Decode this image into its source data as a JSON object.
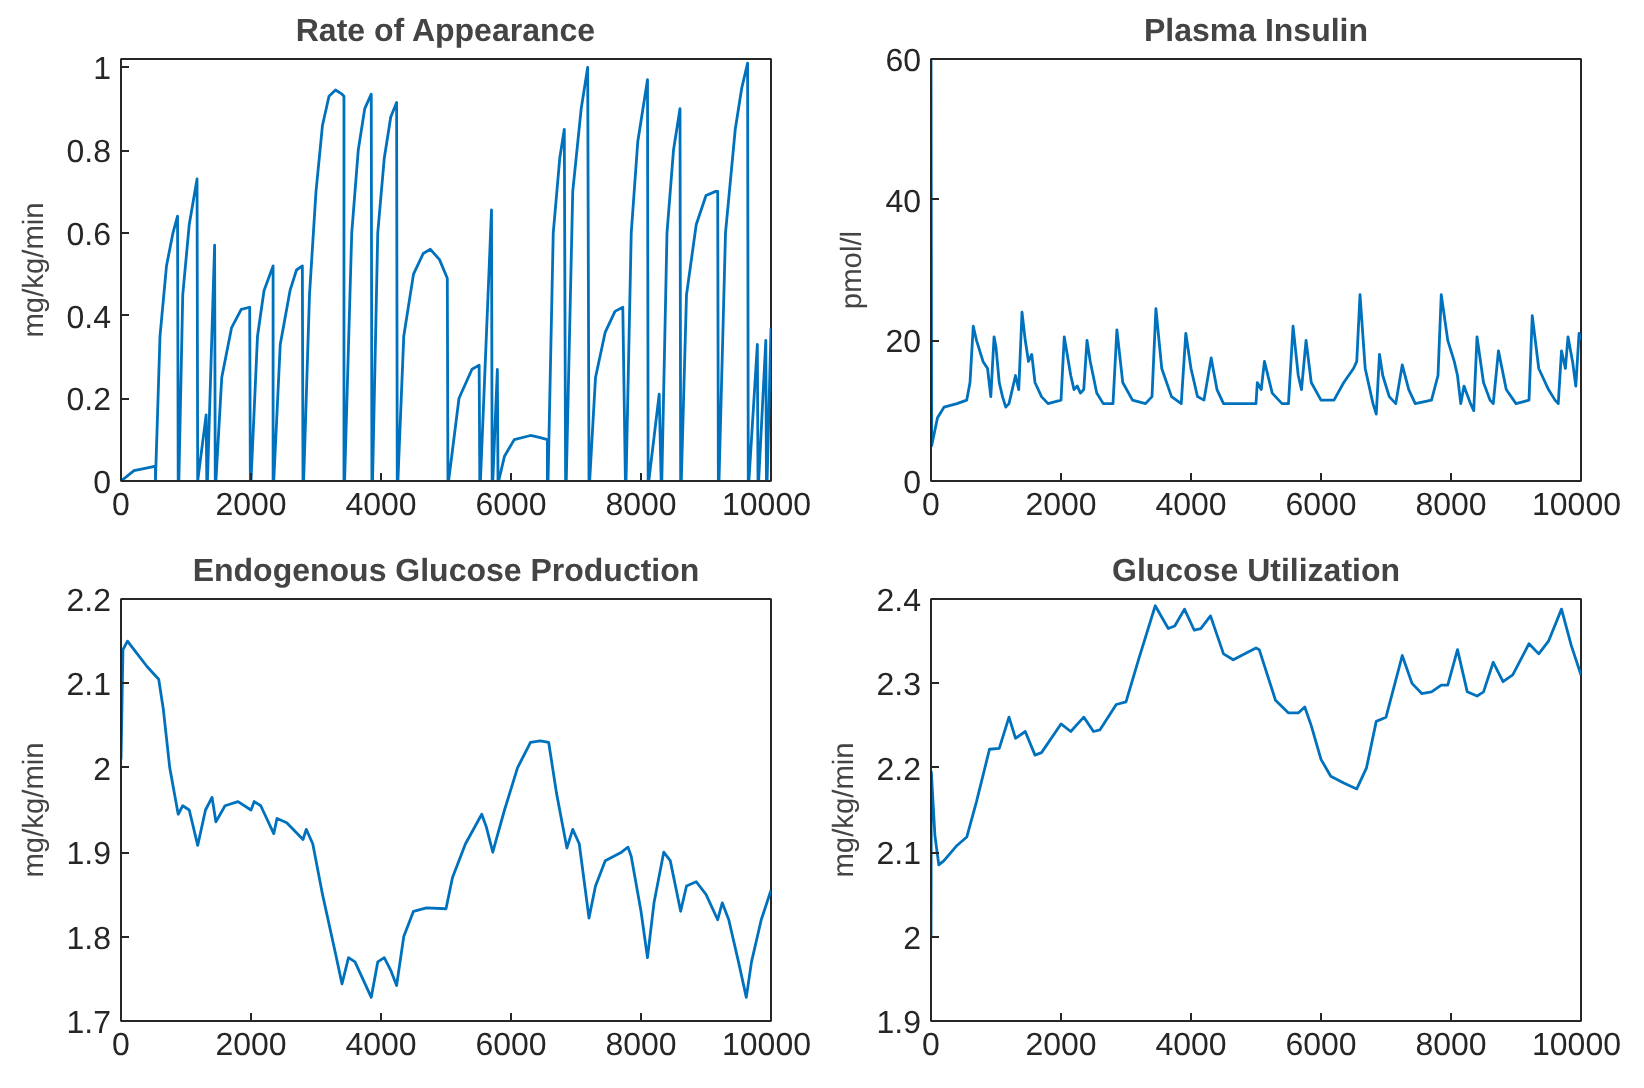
{
  "chart_data": [
    {
      "type": "line",
      "title": "Rate of Appearance",
      "ylabel": "mg/kg/min",
      "xlim": [
        0,
        10000
      ],
      "ylim": [
        0,
        1.02
      ],
      "xticks": [
        0,
        2000,
        4000,
        6000,
        8000,
        10000
      ],
      "yticks": [
        0,
        0.2,
        0.4,
        0.6,
        0.8,
        1
      ],
      "grid": false,
      "marker": "none",
      "line_style": "solid",
      "series": [
        {
          "color": "#0072bd",
          "x": [
            0,
            200,
            500,
            530,
            530,
            600,
            700,
            800,
            870,
            880,
            890,
            950,
            1050,
            1170,
            1180,
            1180,
            1310,
            1320,
            1330,
            1440,
            1450,
            1460,
            1550,
            1700,
            1850,
            1980,
            1990,
            2000,
            2100,
            2200,
            2340,
            2340,
            2350,
            2450,
            2600,
            2700,
            2790,
            2800,
            2810,
            2900,
            3000,
            3100,
            3200,
            3300,
            3400,
            3430,
            3430,
            3440,
            3550,
            3650,
            3750,
            3850,
            3860,
            3870,
            3950,
            4050,
            4150,
            4240,
            4250,
            4260,
            4350,
            4500,
            4650,
            4760,
            4900,
            5020,
            5030,
            5040,
            5200,
            5400,
            5510,
            5520,
            5530,
            5700,
            5710,
            5720,
            5790,
            5800,
            5810,
            5900,
            6050,
            6300,
            6450,
            6560,
            6560,
            6570,
            6650,
            6750,
            6820,
            6840,
            6850,
            6950,
            7080,
            7180,
            7200,
            7210,
            7300,
            7450,
            7600,
            7720,
            7760,
            7770,
            7850,
            7950,
            8100,
            8110,
            8120,
            8280,
            8310,
            8320,
            8400,
            8500,
            8600,
            8610,
            8620,
            8700,
            8850,
            9000,
            9150,
            9180,
            9190,
            9200,
            9300,
            9450,
            9550,
            9640,
            9650,
            9660,
            9790,
            9800,
            9810,
            9920,
            9930,
            9940,
            10000
          ],
          "values": [
            0,
            0.025,
            0.035,
            0.035,
            0,
            0.35,
            0.52,
            0.6,
            0.64,
            0,
            0,
            0.45,
            0.62,
            0.73,
            0,
            0,
            0.16,
            0,
            0,
            0.57,
            0,
            0,
            0.25,
            0.37,
            0.415,
            0.42,
            0,
            0,
            0.35,
            0.46,
            0.52,
            0,
            0,
            0.33,
            0.46,
            0.51,
            0.52,
            0,
            0,
            0.45,
            0.7,
            0.86,
            0.93,
            0.945,
            0.935,
            0.93,
            0,
            0,
            0.6,
            0.8,
            0.9,
            0.935,
            0,
            0,
            0.6,
            0.78,
            0.88,
            0.915,
            0,
            0,
            0.35,
            0.5,
            0.55,
            0.56,
            0.535,
            0.49,
            0,
            0,
            0.2,
            0.27,
            0.28,
            0,
            0,
            0.655,
            0,
            0,
            0.27,
            0,
            0,
            0.06,
            0.1,
            0.11,
            0.105,
            0.1,
            0,
            0,
            0.6,
            0.78,
            0.85,
            0,
            0,
            0.7,
            0.9,
            1.0,
            0,
            0,
            0.25,
            0.36,
            0.41,
            0.42,
            0,
            0,
            0.6,
            0.82,
            0.97,
            0,
            0,
            0.21,
            0,
            0,
            0.6,
            0.8,
            0.9,
            0,
            0,
            0.45,
            0.62,
            0.69,
            0.7,
            0.7,
            0,
            0,
            0.6,
            0.85,
            0.95,
            1.01,
            0,
            0,
            0.33,
            0,
            0,
            0.34,
            0,
            0,
            0.37
          ]
        }
      ]
    },
    {
      "type": "line",
      "title": "Plasma Insulin",
      "ylabel": "pmol/l",
      "xlim": [
        0,
        10000
      ],
      "ylim": [
        0,
        60
      ],
      "xticks": [
        0,
        2000,
        4000,
        6000,
        8000,
        10000
      ],
      "yticks": [
        0,
        20,
        40,
        60
      ],
      "grid": false,
      "marker": "none",
      "line_style": "solid",
      "series": [
        {
          "color": "#0072bd",
          "x": [
            0,
            10,
            100,
            200,
            400,
            550,
            600,
            650,
            700,
            800,
            870,
            920,
            970,
            1000,
            1050,
            1100,
            1150,
            1200,
            1300,
            1350,
            1400,
            1450,
            1500,
            1550,
            1600,
            1700,
            1800,
            2000,
            2050,
            2150,
            2200,
            2250,
            2300,
            2350,
            2400,
            2450,
            2550,
            2650,
            2800,
            2860,
            2950,
            3100,
            3300,
            3400,
            3460,
            3550,
            3700,
            3850,
            3920,
            4000,
            4100,
            4200,
            4310,
            4400,
            4500,
            5000,
            5020,
            5080,
            5130,
            5250,
            5400,
            5500,
            5570,
            5650,
            5700,
            5770,
            5850,
            6000,
            6200,
            6350,
            6500,
            6550,
            6600,
            6680,
            6800,
            6850,
            6900,
            6950,
            7050,
            7150,
            7250,
            7350,
            7450,
            7700,
            7800,
            7850,
            7950,
            8050,
            8100,
            8150,
            8200,
            8300,
            8350,
            8400,
            8500,
            8600,
            8650,
            8730,
            8850,
            9000,
            9200,
            9250,
            9350,
            9400,
            9500,
            9600,
            9650,
            9700,
            9760,
            9800,
            9870,
            9920,
            9970,
            10000
          ],
          "values": [
            60,
            5,
            9,
            10.5,
            11,
            11.5,
            14,
            22,
            20,
            17,
            16,
            12,
            20.5,
            19,
            14,
            12,
            10.5,
            11,
            15,
            13,
            24,
            20,
            17,
            18,
            14,
            12,
            11,
            11.5,
            20.5,
            15,
            13,
            13.5,
            12.5,
            13,
            20,
            17,
            12.5,
            11,
            11,
            21.5,
            14,
            11.5,
            11,
            12,
            24.5,
            16,
            12,
            11,
            21,
            16,
            12,
            11.5,
            17.5,
            13,
            11,
            11,
            14,
            13,
            17,
            12.5,
            11,
            11,
            22,
            15,
            13,
            20,
            14,
            11.5,
            11.5,
            14,
            16,
            17,
            26.5,
            16,
            11,
            9.5,
            18,
            15,
            12,
            11,
            16.5,
            13,
            11,
            11.5,
            15,
            26.5,
            20,
            17,
            15,
            11,
            13.5,
            11,
            10,
            20.5,
            14,
            11.5,
            11,
            18.5,
            13,
            11,
            11.5,
            23.5,
            16,
            15,
            13,
            11.5,
            11,
            18.5,
            16,
            20.5,
            17,
            13.5,
            21,
            20
          ]
        }
      ]
    },
    {
      "type": "line",
      "title": "Endogenous Glucose Production",
      "ylabel": "mg/kg/min",
      "xlim": [
        0,
        10000
      ],
      "ylim": [
        1.7,
        2.2
      ],
      "xticks": [
        0,
        2000,
        4000,
        6000,
        8000,
        10000
      ],
      "yticks": [
        1.7,
        1.8,
        1.9,
        2,
        2.1,
        2.2
      ],
      "grid": false,
      "marker": "none",
      "line_style": "solid",
      "series": [
        {
          "color": "#0072bd",
          "x": [
            0,
            30,
            100,
            200,
            400,
            580,
            650,
            750,
            880,
            950,
            1050,
            1180,
            1300,
            1400,
            1460,
            1600,
            1800,
            2000,
            2050,
            2150,
            2350,
            2400,
            2550,
            2800,
            2850,
            2950,
            3100,
            3300,
            3400,
            3500,
            3600,
            3850,
            3950,
            4050,
            4150,
            4240,
            4350,
            4500,
            4700,
            5000,
            5100,
            5300,
            5550,
            5620,
            5720,
            5780,
            5900,
            6100,
            6300,
            6450,
            6580,
            6700,
            6860,
            6950,
            7050,
            7200,
            7300,
            7450,
            7700,
            7800,
            7850,
            8000,
            8100,
            8200,
            8350,
            8450,
            8610,
            8700,
            8850,
            9000,
            9180,
            9250,
            9350,
            9500,
            9620,
            9700,
            9850,
            10000
          ],
          "values": [
            2.01,
            2.14,
            2.15,
            2.14,
            2.12,
            2.105,
            2.07,
            2.0,
            1.945,
            1.955,
            1.95,
            1.908,
            1.95,
            1.965,
            1.936,
            1.955,
            1.96,
            1.95,
            1.96,
            1.955,
            1.922,
            1.94,
            1.935,
            1.915,
            1.927,
            1.91,
            1.85,
            1.78,
            1.744,
            1.775,
            1.77,
            1.728,
            1.77,
            1.775,
            1.76,
            1.742,
            1.8,
            1.83,
            1.834,
            1.833,
            1.87,
            1.91,
            1.945,
            1.93,
            1.9,
            1.917,
            1.95,
            2.0,
            2.03,
            2.032,
            2.03,
            1.97,
            1.905,
            1.927,
            1.91,
            1.822,
            1.86,
            1.89,
            1.9,
            1.906,
            1.895,
            1.83,
            1.775,
            1.84,
            1.9,
            1.89,
            1.83,
            1.86,
            1.865,
            1.85,
            1.82,
            1.84,
            1.82,
            1.77,
            1.728,
            1.77,
            1.82,
            1.855
          ]
        }
      ]
    },
    {
      "type": "line",
      "title": "Glucose Utilization",
      "ylabel": "mg/kg/min",
      "xlim": [
        0,
        10000
      ],
      "ylim": [
        1.9,
        2.4
      ],
      "xticks": [
        0,
        2000,
        4000,
        6000,
        8000,
        10000
      ],
      "yticks": [
        1.9,
        2,
        2.1,
        2.2,
        2.3,
        2.4
      ],
      "grid": false,
      "marker": "none",
      "line_style": "solid",
      "series": [
        {
          "color": "#0072bd",
          "x": [
            0,
            5,
            60,
            120,
            200,
            400,
            550,
            700,
            900,
            1050,
            1200,
            1300,
            1450,
            1600,
            1700,
            2000,
            2150,
            2350,
            2500,
            2600,
            2850,
            3000,
            3200,
            3450,
            3650,
            3750,
            3900,
            4050,
            4150,
            4300,
            4500,
            4650,
            5000,
            5050,
            5300,
            5500,
            5650,
            5750,
            5850,
            6000,
            6150,
            6350,
            6550,
            6700,
            6850,
            7000,
            7250,
            7400,
            7550,
            7700,
            7850,
            7950,
            8100,
            8250,
            8400,
            8500,
            8650,
            8800,
            8950,
            9200,
            9350,
            9500,
            9700,
            9850,
            10000
          ],
          "values": [
            2.0,
            2.195,
            2.12,
            2.085,
            2.09,
            2.108,
            2.118,
            2.16,
            2.222,
            2.223,
            2.26,
            2.235,
            2.243,
            2.215,
            2.218,
            2.252,
            2.243,
            2.26,
            2.243,
            2.245,
            2.275,
            2.278,
            2.33,
            2.392,
            2.365,
            2.368,
            2.388,
            2.363,
            2.365,
            2.38,
            2.335,
            2.328,
            2.342,
            2.34,
            2.28,
            2.265,
            2.265,
            2.272,
            2.25,
            2.21,
            2.19,
            2.182,
            2.175,
            2.2,
            2.255,
            2.26,
            2.333,
            2.3,
            2.288,
            2.29,
            2.298,
            2.298,
            2.34,
            2.29,
            2.285,
            2.29,
            2.325,
            2.302,
            2.31,
            2.347,
            2.335,
            2.35,
            2.388,
            2.345,
            2.31
          ]
        }
      ]
    }
  ]
}
